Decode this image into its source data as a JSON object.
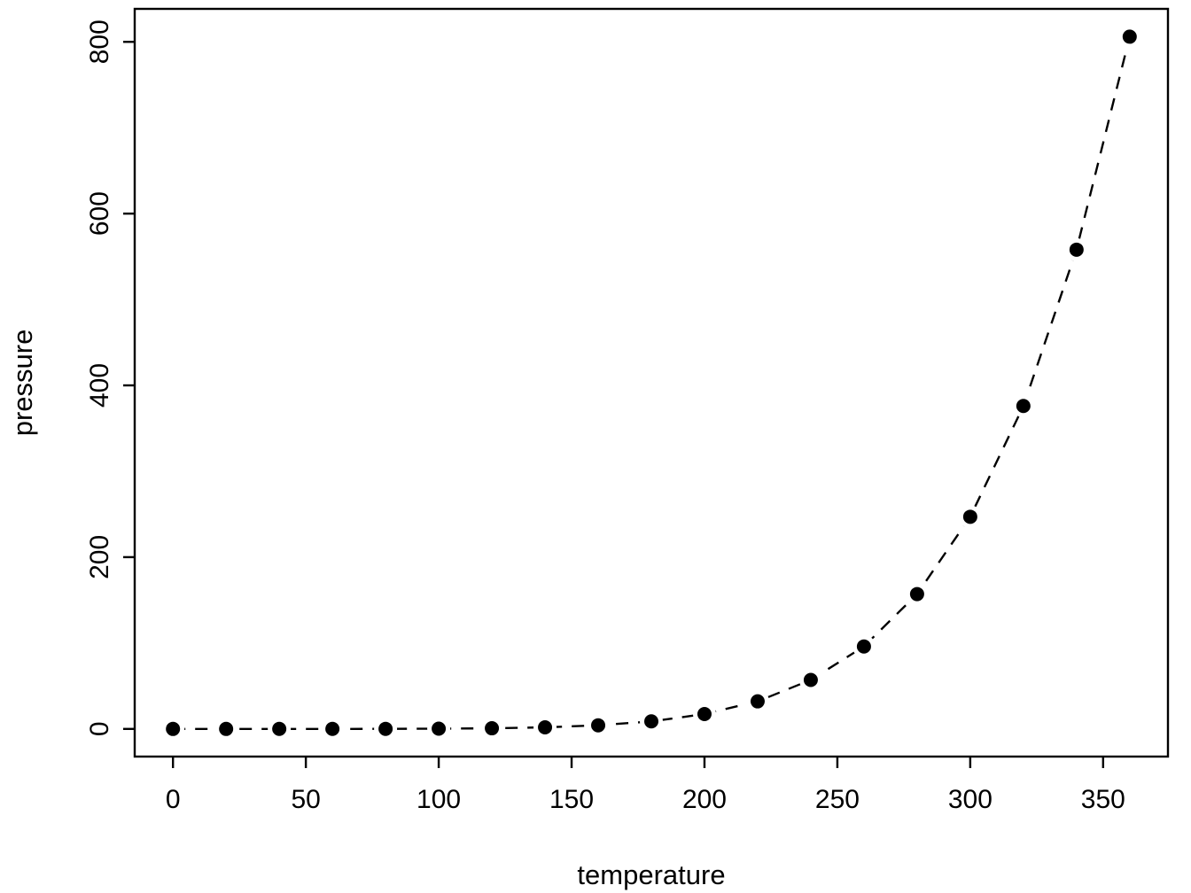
{
  "chart_data": {
    "type": "scatter",
    "title": "",
    "xlabel": "temperature",
    "ylabel": "pressure",
    "x": [
      0,
      20,
      40,
      60,
      80,
      100,
      120,
      140,
      160,
      180,
      200,
      220,
      240,
      260,
      280,
      300,
      320,
      340,
      360
    ],
    "y": [
      0.0002,
      0.0012,
      0.006,
      0.03,
      0.09,
      0.27,
      0.75,
      1.85,
      4.2,
      8.8,
      17.3,
      32.1,
      57.0,
      96.0,
      157.0,
      247.0,
      376.0,
      558.0,
      806.0
    ],
    "x_ticks": [
      0,
      50,
      100,
      150,
      200,
      250,
      300,
      350
    ],
    "y_ticks": [
      0,
      200,
      400,
      600,
      800
    ],
    "xlim": [
      -14.4,
      374.4
    ],
    "ylim": [
      -32.2,
      838.4
    ],
    "line_style": "dashed",
    "marker": "filled-circle",
    "color": "#000000",
    "background": "#ffffff",
    "grid": false,
    "legend": null
  }
}
